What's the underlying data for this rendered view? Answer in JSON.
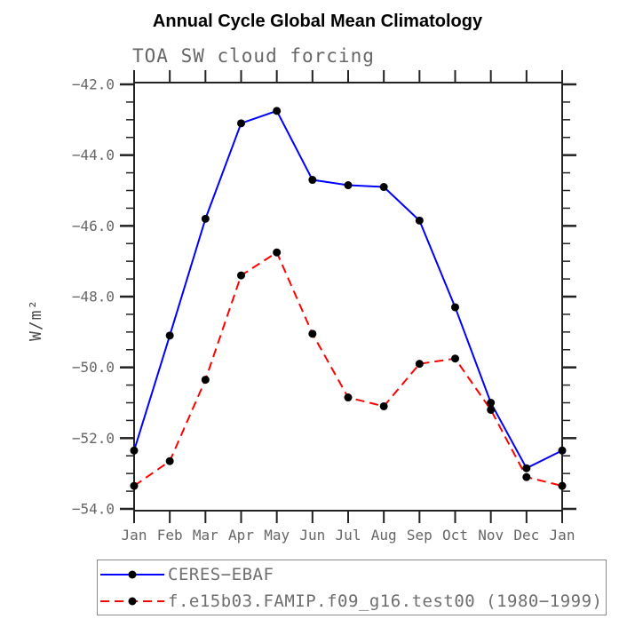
{
  "header": {
    "title": "Annual Cycle Global Mean Climatology",
    "subtitle": "TOA SW cloud forcing"
  },
  "colors": {
    "ceres_line": "#0000ff",
    "model_line": "#ff0000",
    "marker": "#000000",
    "axis": "#222222",
    "tick_label": "#666666",
    "legend_text": "#6e6e6e"
  },
  "chart_data": {
    "type": "line",
    "title": "Annual Cycle Global Mean Climatology",
    "subtitle": "TOA SW cloud forcing",
    "xlabel": "",
    "ylabel": "W/m²",
    "categories": [
      "Jan",
      "Feb",
      "Mar",
      "Apr",
      "May",
      "Jun",
      "Jul",
      "Aug",
      "Sep",
      "Oct",
      "Nov",
      "Dec",
      "Jan"
    ],
    "series": [
      {
        "name": "CERES−EBAF",
        "color": "#0000ff",
        "line_style": "solid",
        "marker": "filled-black-circle",
        "values": [
          -52.35,
          -49.1,
          -45.8,
          -43.1,
          -42.75,
          -44.7,
          -44.85,
          -44.9,
          -45.85,
          -48.3,
          -51.0,
          -52.85,
          -52.35
        ]
      },
      {
        "name": "f.e15b03.FAMIP.f09_g16.test00 (1980−1999)",
        "color": "#ff0000",
        "line_style": "dashed",
        "marker": "filled-black-circle",
        "values": [
          -53.35,
          -52.65,
          -50.35,
          -47.4,
          -46.75,
          -49.05,
          -50.85,
          -51.1,
          -49.9,
          -49.75,
          -51.2,
          -53.1,
          -53.35
        ]
      }
    ],
    "ylim": [
      -54.0,
      -42.0
    ],
    "ytick_major_step": 2.0,
    "ytick_minor_step": 0.5,
    "ytick_labels": [
      "−42.0",
      "−44.0",
      "−46.0",
      "−48.0",
      "−50.0",
      "−52.0",
      "−54.0"
    ],
    "grid": false,
    "legend_position": "bottom"
  },
  "legend": {
    "entries": [
      {
        "label": "CERES−EBAF"
      },
      {
        "label": "f.e15b03.FAMIP.f09_g16.test00 (1980−1999)"
      }
    ]
  }
}
